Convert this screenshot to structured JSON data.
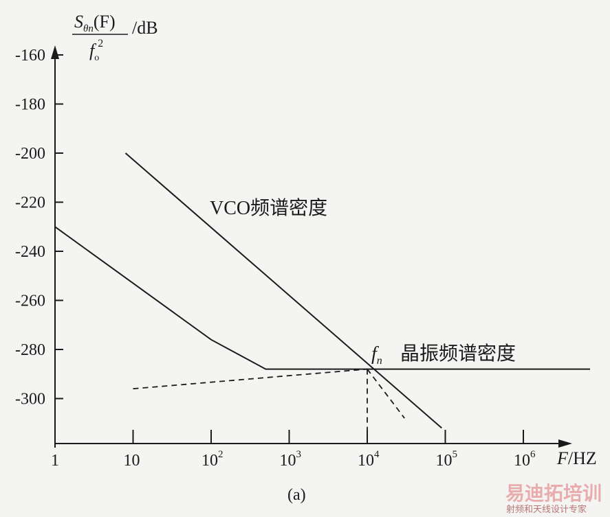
{
  "chart_data": {
    "type": "line",
    "ylabel": {
      "numerator_main": "S",
      "numerator_sub": "θn",
      "numerator_arg": "(F)",
      "denominator_main": "f",
      "denominator_sub": "o",
      "denominator_sup": "2",
      "unit": "/dB"
    },
    "xlabel": {
      "italic": "F",
      "rest": "/HZ"
    },
    "x_scale": "log",
    "xlim": [
      1,
      10000000
    ],
    "ylim": [
      -315,
      -160
    ],
    "x_ticks": [
      {
        "value": 1,
        "base": "1",
        "exp": ""
      },
      {
        "value": 10,
        "base": "10",
        "exp": ""
      },
      {
        "value": 100,
        "base": "10",
        "exp": "2"
      },
      {
        "value": 1000,
        "base": "10",
        "exp": "3"
      },
      {
        "value": 10000,
        "base": "10",
        "exp": "4"
      },
      {
        "value": 100000,
        "base": "10",
        "exp": "5"
      },
      {
        "value": 1000000,
        "base": "10",
        "exp": "6"
      }
    ],
    "y_ticks": [
      {
        "value": -160,
        "label": "-160"
      },
      {
        "value": -180,
        "label": "-180"
      },
      {
        "value": -200,
        "label": "-200"
      },
      {
        "value": -220,
        "label": "-220"
      },
      {
        "value": -240,
        "label": "-240"
      },
      {
        "value": -260,
        "label": "-260"
      },
      {
        "value": -280,
        "label": "-280"
      },
      {
        "value": -300,
        "label": "-300"
      }
    ],
    "series": [
      {
        "label_text": "VCO频谱密度",
        "style": "solid",
        "points": [
          [
            8,
            -200
          ],
          [
            90000,
            -312
          ]
        ]
      },
      {
        "label_text": "晶振频谱密度",
        "style": "solid",
        "points": [
          [
            1,
            -230
          ],
          [
            100,
            -276
          ],
          [
            500,
            -288
          ],
          [
            10000000,
            -288
          ]
        ]
      },
      {
        "style": "dashed",
        "points": [
          [
            10,
            -296
          ],
          [
            10000,
            -288
          ]
        ]
      },
      {
        "style": "dashed",
        "points": [
          [
            10000,
            -288
          ],
          [
            30000,
            -308
          ]
        ]
      },
      {
        "style": "dashed",
        "points": [
          [
            10000,
            -288
          ],
          [
            10000,
            -315
          ]
        ]
      }
    ],
    "annotation": {
      "main": "f",
      "sub": "n",
      "x": 10000,
      "y": -288
    },
    "caption": "(a)"
  },
  "watermark": {
    "main": "易迪拓培训",
    "sub": "射频和天线设计专家",
    "color": "#e8a0a0"
  }
}
